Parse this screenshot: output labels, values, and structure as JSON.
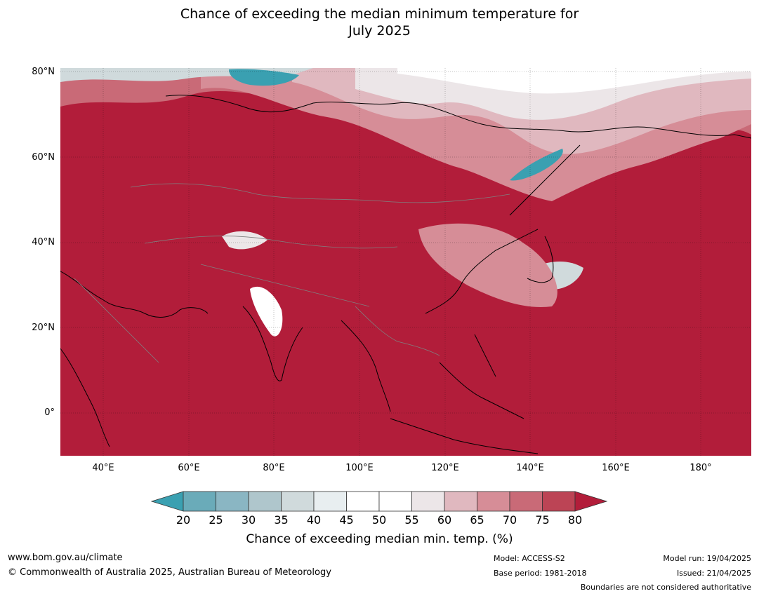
{
  "title_line1": "Chance of exceeding the median minimum temperature for",
  "title_line2": "July 2025",
  "lat_labels": [
    "80°N",
    "60°N",
    "40°N",
    "20°N",
    "0°"
  ],
  "lon_labels": [
    "40°E",
    "60°E",
    "80°E",
    "100°E",
    "120°E",
    "140°E",
    "160°E",
    "180°"
  ],
  "colorbar": {
    "ticks": [
      "20",
      "25",
      "30",
      "35",
      "40",
      "45",
      "50",
      "55",
      "60",
      "65",
      "70",
      "75",
      "80"
    ],
    "colors": [
      "#3aa0b1",
      "#6aabb9",
      "#8ab6c3",
      "#afc6cc",
      "#d0dadc",
      "#e8eef0",
      "#ffffff",
      "#ffffff",
      "#ece6e8",
      "#e0b8bf",
      "#d68d97",
      "#c96a77",
      "#bc4455",
      "#b21d3a"
    ],
    "label": "Chance of exceeding median min. temp. (%)"
  },
  "map_colors": {
    "ocean_land_high": "#b21d3a",
    "mid_high": "#c96a77",
    "mid": "#d68d97",
    "light": "#e0b8bf",
    "neutral": "#ece6e8",
    "cool_light": "#d0dadc",
    "cool": "#3aa0b1",
    "coastline": "#000000",
    "border": "#808080"
  },
  "footer": {
    "website": "www.bom.gov.au/climate",
    "copyright": "© Commonwealth of Australia 2025, Australian Bureau of Meteorology",
    "model": "Model: ACCESS-S2",
    "base_period": "Base period: 1981-2018",
    "model_run": "Model run: 19/04/2025",
    "issued": "Issued: 21/04/2025",
    "disclaimer": "Boundaries are not considered authoritative"
  }
}
